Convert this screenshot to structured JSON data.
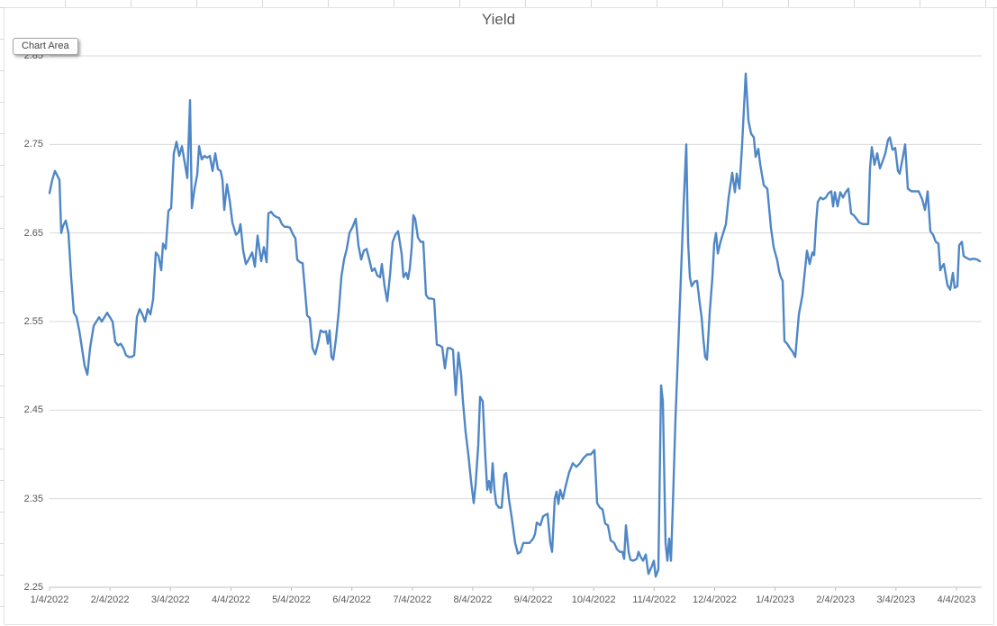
{
  "ui": {
    "tooltip_label": "Chart Area"
  },
  "chart_data": {
    "type": "line",
    "title": "Yield",
    "xlabel": "",
    "ylabel": "",
    "grid": true,
    "legend": false,
    "series_name": "Yield",
    "series_color": "#4f87c6",
    "axis_color": "#bfbfbf",
    "gridline_color": "#d9d9d9",
    "ylim": [
      2.25,
      2.85
    ],
    "y_tick_labels": [
      "2.85",
      "2.75",
      "2.65",
      "2.55",
      "2.45",
      "2.35",
      "2.25"
    ],
    "x_tick_labels": [
      "1/4/2022",
      "2/4/2022",
      "3/4/2022",
      "4/4/2022",
      "5/4/2022",
      "6/4/2022",
      "7/4/2022",
      "8/4/2022",
      "9/4/2022",
      "10/4/2022",
      "11/4/2022",
      "12/4/2022",
      "1/4/2023",
      "2/4/2023",
      "3/4/2023",
      "4/4/2023"
    ],
    "points_note": "points are [x_px, yield]; x_px maps linearly to dates: 55 = 1/4/2022 tick, 1062 = 4/4/2023 tick",
    "points": [
      [
        55,
        2.695
      ],
      [
        58,
        2.71
      ],
      [
        61,
        2.72
      ],
      [
        64,
        2.714
      ],
      [
        66,
        2.71
      ],
      [
        68,
        2.65
      ],
      [
        70,
        2.658
      ],
      [
        73,
        2.664
      ],
      [
        76,
        2.65
      ],
      [
        79,
        2.6
      ],
      [
        82,
        2.56
      ],
      [
        85,
        2.555
      ],
      [
        88,
        2.54
      ],
      [
        91,
        2.52
      ],
      [
        94,
        2.5
      ],
      [
        97,
        2.49
      ],
      [
        100,
        2.52
      ],
      [
        104,
        2.545
      ],
      [
        107,
        2.55
      ],
      [
        110,
        2.555
      ],
      [
        113,
        2.55
      ],
      [
        116,
        2.555
      ],
      [
        119,
        2.56
      ],
      [
        122,
        2.555
      ],
      [
        125,
        2.55
      ],
      [
        128,
        2.527
      ],
      [
        131,
        2.523
      ],
      [
        134,
        2.525
      ],
      [
        137,
        2.52
      ],
      [
        140,
        2.512
      ],
      [
        143,
        2.51
      ],
      [
        146,
        2.51
      ],
      [
        149,
        2.512
      ],
      [
        152,
        2.555
      ],
      [
        155,
        2.564
      ],
      [
        158,
        2.558
      ],
      [
        161,
        2.55
      ],
      [
        164,
        2.564
      ],
      [
        167,
        2.558
      ],
      [
        170,
        2.575
      ],
      [
        173,
        2.628
      ],
      [
        176,
        2.624
      ],
      [
        179,
        2.608
      ],
      [
        181,
        2.638
      ],
      [
        184,
        2.632
      ],
      [
        187,
        2.675
      ],
      [
        190,
        2.678
      ],
      [
        193,
        2.74
      ],
      [
        196,
        2.753
      ],
      [
        199,
        2.737
      ],
      [
        202,
        2.748
      ],
      [
        205,
        2.73
      ],
      [
        208,
        2.712
      ],
      [
        211,
        2.8
      ],
      [
        213,
        2.678
      ],
      [
        216,
        2.7
      ],
      [
        219,
        2.716
      ],
      [
        221,
        2.748
      ],
      [
        224,
        2.733
      ],
      [
        227,
        2.737
      ],
      [
        230,
        2.735
      ],
      [
        233,
        2.737
      ],
      [
        236,
        2.72
      ],
      [
        239,
        2.74
      ],
      [
        242,
        2.722
      ],
      [
        245,
        2.72
      ],
      [
        247,
        2.71
      ],
      [
        249,
        2.676
      ],
      [
        252,
        2.705
      ],
      [
        255,
        2.687
      ],
      [
        258,
        2.662
      ],
      [
        262,
        2.648
      ],
      [
        265,
        2.651
      ],
      [
        267,
        2.66
      ],
      [
        270,
        2.63
      ],
      [
        273,
        2.615
      ],
      [
        276,
        2.62
      ],
      [
        280,
        2.628
      ],
      [
        283,
        2.612
      ],
      [
        286,
        2.647
      ],
      [
        288,
        2.632
      ],
      [
        290,
        2.618
      ],
      [
        293,
        2.634
      ],
      [
        296,
        2.617
      ],
      [
        298,
        2.672
      ],
      [
        301,
        2.674
      ],
      [
        304,
        2.67
      ],
      [
        307,
        2.668
      ],
      [
        310,
        2.667
      ],
      [
        313,
        2.66
      ],
      [
        316,
        2.657
      ],
      [
        319,
        2.657
      ],
      [
        322,
        2.656
      ],
      [
        325,
        2.649
      ],
      [
        328,
        2.644
      ],
      [
        330,
        2.62
      ],
      [
        333,
        2.617
      ],
      [
        336,
        2.616
      ],
      [
        339,
        2.581
      ],
      [
        341,
        2.557
      ],
      [
        344,
        2.554
      ],
      [
        347,
        2.52
      ],
      [
        350,
        2.513
      ],
      [
        353,
        2.525
      ],
      [
        356,
        2.54
      ],
      [
        359,
        2.538
      ],
      [
        362,
        2.539
      ],
      [
        364,
        2.525
      ],
      [
        366,
        2.54
      ],
      [
        368,
        2.51
      ],
      [
        370,
        2.507
      ],
      [
        373,
        2.53
      ],
      [
        376,
        2.56
      ],
      [
        379,
        2.6
      ],
      [
        382,
        2.62
      ],
      [
        385,
        2.632
      ],
      [
        388,
        2.65
      ],
      [
        392,
        2.658
      ],
      [
        395,
        2.666
      ],
      [
        398,
        2.636
      ],
      [
        401,
        2.62
      ],
      [
        404,
        2.63
      ],
      [
        407,
        2.632
      ],
      [
        410,
        2.62
      ],
      [
        413,
        2.607
      ],
      [
        416,
        2.61
      ],
      [
        419,
        2.602
      ],
      [
        422,
        2.6
      ],
      [
        424,
        2.615
      ],
      [
        427,
        2.59
      ],
      [
        430,
        2.573
      ],
      [
        433,
        2.602
      ],
      [
        436,
        2.64
      ],
      [
        439,
        2.648
      ],
      [
        442,
        2.652
      ],
      [
        444,
        2.639
      ],
      [
        446,
        2.626
      ],
      [
        448,
        2.6
      ],
      [
        451,
        2.605
      ],
      [
        453,
        2.598
      ],
      [
        455,
        2.61
      ],
      [
        457,
        2.632
      ],
      [
        459,
        2.67
      ],
      [
        461,
        2.666
      ],
      [
        464,
        2.645
      ],
      [
        467,
        2.64
      ],
      [
        470,
        2.64
      ],
      [
        473,
        2.58
      ],
      [
        476,
        2.576
      ],
      [
        479,
        2.576
      ],
      [
        482,
        2.575
      ],
      [
        485,
        2.524
      ],
      [
        488,
        2.523
      ],
      [
        491,
        2.521
      ],
      [
        494,
        2.497
      ],
      [
        497,
        2.52
      ],
      [
        500,
        2.52
      ],
      [
        503,
        2.518
      ],
      [
        506,
        2.467
      ],
      [
        509,
        2.515
      ],
      [
        512,
        2.49
      ],
      [
        514,
        2.46
      ],
      [
        517,
        2.425
      ],
      [
        520,
        2.4
      ],
      [
        523,
        2.37
      ],
      [
        526,
        2.345
      ],
      [
        528,
        2.365
      ],
      [
        531,
        2.41
      ],
      [
        533,
        2.465
      ],
      [
        536,
        2.46
      ],
      [
        539,
        2.395
      ],
      [
        541,
        2.36
      ],
      [
        543,
        2.37
      ],
      [
        545,
        2.357
      ],
      [
        547,
        2.39
      ],
      [
        549,
        2.36
      ],
      [
        551,
        2.344
      ],
      [
        554,
        2.34
      ],
      [
        557,
        2.34
      ],
      [
        560,
        2.377
      ],
      [
        562,
        2.379
      ],
      [
        565,
        2.35
      ],
      [
        568,
        2.33
      ],
      [
        572,
        2.3
      ],
      [
        575,
        2.288
      ],
      [
        578,
        2.29
      ],
      [
        581,
        2.3
      ],
      [
        584,
        2.3
      ],
      [
        588,
        2.3
      ],
      [
        592,
        2.305
      ],
      [
        594,
        2.31
      ],
      [
        596,
        2.323
      ],
      [
        600,
        2.32
      ],
      [
        603,
        2.33
      ],
      [
        606,
        2.332
      ],
      [
        608,
        2.333
      ],
      [
        611,
        2.3
      ],
      [
        613,
        2.29
      ],
      [
        616,
        2.35
      ],
      [
        618,
        2.358
      ],
      [
        620,
        2.344
      ],
      [
        622,
        2.36
      ],
      [
        625,
        2.35
      ],
      [
        628,
        2.364
      ],
      [
        632,
        2.38
      ],
      [
        636,
        2.39
      ],
      [
        640,
        2.386
      ],
      [
        644,
        2.39
      ],
      [
        648,
        2.396
      ],
      [
        652,
        2.4
      ],
      [
        656,
        2.4
      ],
      [
        660,
        2.405
      ],
      [
        663,
        2.345
      ],
      [
        666,
        2.34
      ],
      [
        669,
        2.338
      ],
      [
        672,
        2.322
      ],
      [
        675,
        2.32
      ],
      [
        678,
        2.303
      ],
      [
        682,
        2.3
      ],
      [
        685,
        2.293
      ],
      [
        688,
        2.29
      ],
      [
        691,
        2.29
      ],
      [
        693,
        2.282
      ],
      [
        695,
        2.32
      ],
      [
        698,
        2.29
      ],
      [
        700,
        2.281
      ],
      [
        703,
        2.28
      ],
      [
        707,
        2.282
      ],
      [
        709,
        2.29
      ],
      [
        711,
        2.285
      ],
      [
        714,
        2.28
      ],
      [
        717,
        2.287
      ],
      [
        720,
        2.265
      ],
      [
        723,
        2.272
      ],
      [
        726,
        2.28
      ],
      [
        728,
        2.262
      ],
      [
        731,
        2.27
      ],
      [
        734,
        2.478
      ],
      [
        736,
        2.46
      ],
      [
        739,
        2.3
      ],
      [
        741,
        2.28
      ],
      [
        743,
        2.305
      ],
      [
        745,
        2.28
      ],
      [
        747,
        2.34
      ],
      [
        750,
        2.44
      ],
      [
        753,
        2.52
      ],
      [
        756,
        2.6
      ],
      [
        759,
        2.68
      ],
      [
        762,
        2.75
      ],
      [
        764,
        2.64
      ],
      [
        766,
        2.6
      ],
      [
        768,
        2.59
      ],
      [
        771,
        2.595
      ],
      [
        774,
        2.596
      ],
      [
        777,
        2.57
      ],
      [
        779,
        2.555
      ],
      [
        781,
        2.53
      ],
      [
        783,
        2.51
      ],
      [
        785,
        2.507
      ],
      [
        788,
        2.56
      ],
      [
        791,
        2.6
      ],
      [
        793,
        2.638
      ],
      [
        795,
        2.65
      ],
      [
        797,
        2.627
      ],
      [
        800,
        2.64
      ],
      [
        803,
        2.65
      ],
      [
        806,
        2.66
      ],
      [
        809,
        2.69
      ],
      [
        813,
        2.718
      ],
      [
        816,
        2.696
      ],
      [
        818,
        2.717
      ],
      [
        821,
        2.7
      ],
      [
        824,
        2.75
      ],
      [
        828,
        2.83
      ],
      [
        831,
        2.777
      ],
      [
        834,
        2.762
      ],
      [
        837,
        2.758
      ],
      [
        839,
        2.736
      ],
      [
        842,
        2.745
      ],
      [
        844,
        2.728
      ],
      [
        848,
        2.704
      ],
      [
        852,
        2.7
      ],
      [
        856,
        2.656
      ],
      [
        859,
        2.634
      ],
      [
        863,
        2.619
      ],
      [
        865,
        2.607
      ],
      [
        867,
        2.6
      ],
      [
        869,
        2.596
      ],
      [
        871,
        2.528
      ],
      [
        874,
        2.525
      ],
      [
        877,
        2.52
      ],
      [
        880,
        2.516
      ],
      [
        883,
        2.51
      ],
      [
        887,
        2.558
      ],
      [
        891,
        2.58
      ],
      [
        894,
        2.61
      ],
      [
        896,
        2.63
      ],
      [
        899,
        2.615
      ],
      [
        902,
        2.628
      ],
      [
        904,
        2.625
      ],
      [
        906,
        2.66
      ],
      [
        908,
        2.685
      ],
      [
        911,
        2.69
      ],
      [
        914,
        2.688
      ],
      [
        917,
        2.69
      ],
      [
        920,
        2.695
      ],
      [
        923,
        2.697
      ],
      [
        925,
        2.68
      ],
      [
        927,
        2.696
      ],
      [
        930,
        2.68
      ],
      [
        933,
        2.696
      ],
      [
        936,
        2.69
      ],
      [
        939,
        2.696
      ],
      [
        942,
        2.7
      ],
      [
        945,
        2.672
      ],
      [
        948,
        2.67
      ],
      [
        951,
        2.666
      ],
      [
        954,
        2.662
      ],
      [
        958,
        2.66
      ],
      [
        962,
        2.66
      ],
      [
        964,
        2.66
      ],
      [
        966,
        2.723
      ],
      [
        968,
        2.747
      ],
      [
        971,
        2.727
      ],
      [
        974,
        2.74
      ],
      [
        977,
        2.723
      ],
      [
        980,
        2.731
      ],
      [
        983,
        2.74
      ],
      [
        986,
        2.755
      ],
      [
        988,
        2.758
      ],
      [
        991,
        2.744
      ],
      [
        994,
        2.746
      ],
      [
        997,
        2.72
      ],
      [
        999,
        2.717
      ],
      [
        1002,
        2.733
      ],
      [
        1005,
        2.75
      ],
      [
        1008,
        2.7
      ],
      [
        1012,
        2.697
      ],
      [
        1016,
        2.697
      ],
      [
        1020,
        2.697
      ],
      [
        1024,
        2.688
      ],
      [
        1027,
        2.676
      ],
      [
        1030,
        2.697
      ],
      [
        1033,
        2.652
      ],
      [
        1036,
        2.648
      ],
      [
        1039,
        2.64
      ],
      [
        1042,
        2.638
      ],
      [
        1044,
        2.608
      ],
      [
        1046,
        2.612
      ],
      [
        1048,
        2.615
      ],
      [
        1052,
        2.591
      ],
      [
        1055,
        2.586
      ],
      [
        1058,
        2.605
      ],
      [
        1060,
        2.588
      ],
      [
        1063,
        2.59
      ],
      [
        1065,
        2.636
      ],
      [
        1068,
        2.64
      ],
      [
        1070,
        2.624
      ],
      [
        1073,
        2.622
      ],
      [
        1077,
        2.62
      ],
      [
        1081,
        2.621
      ],
      [
        1085,
        2.62
      ],
      [
        1088,
        2.618
      ]
    ]
  }
}
